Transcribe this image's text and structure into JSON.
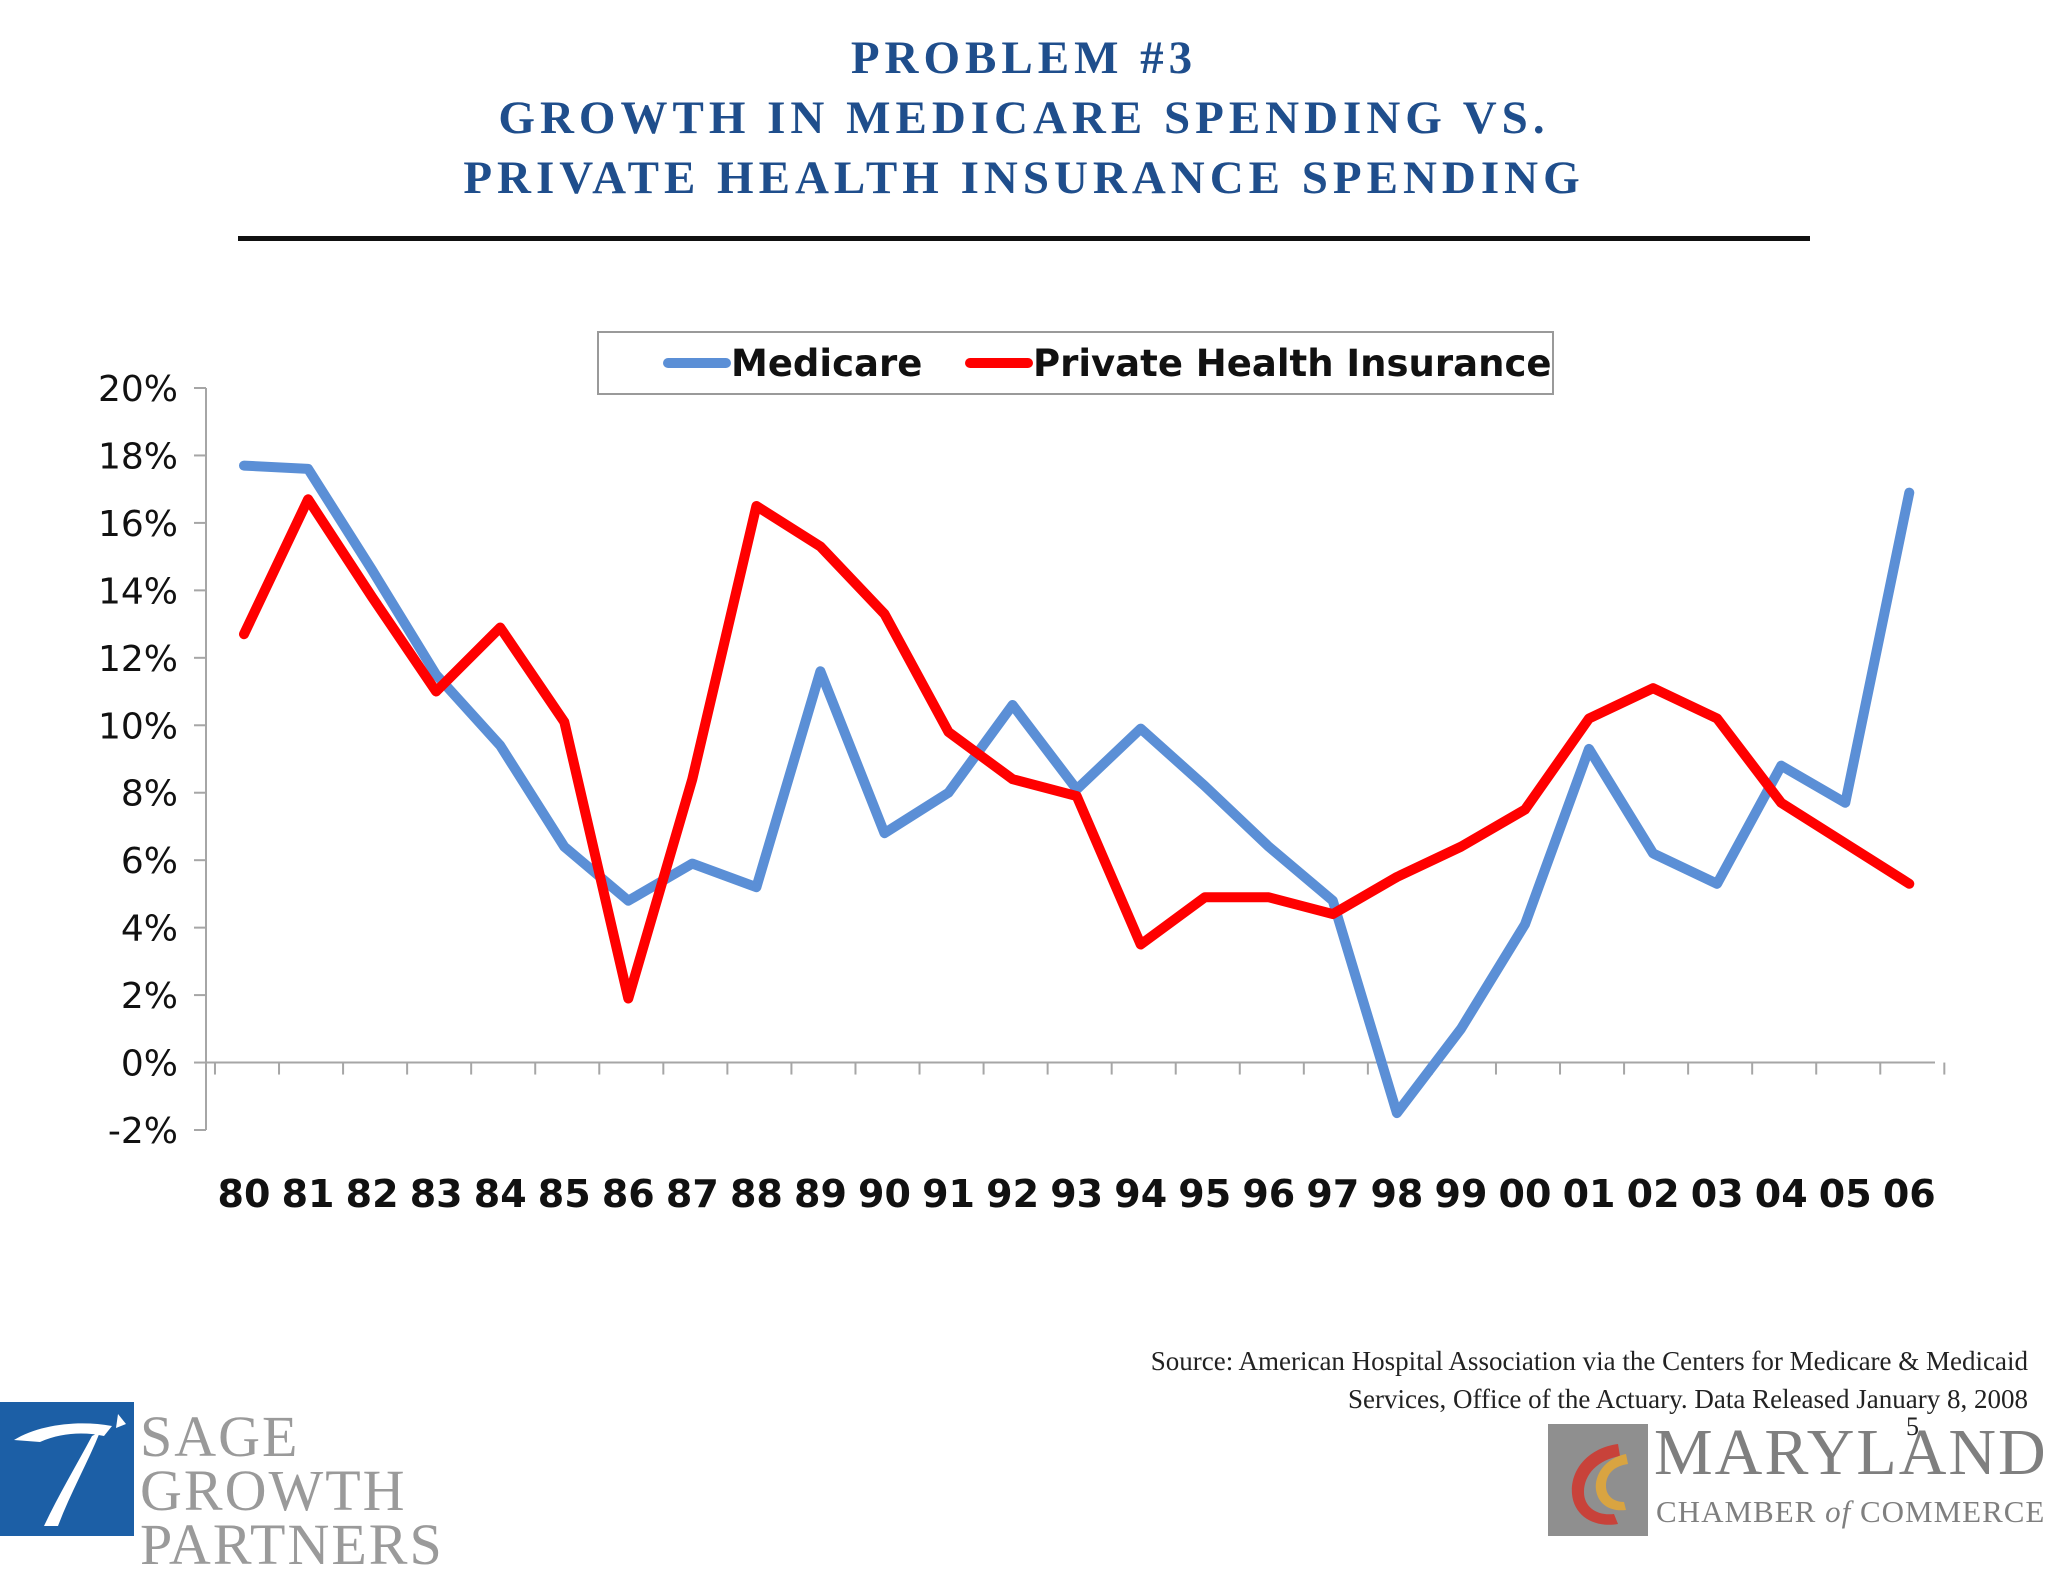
{
  "slide": {
    "title_lines": [
      "PROBLEM #3",
      "GROWTH IN MEDICARE SPENDING VS.",
      "PRIVATE HEALTH INSURANCE SPENDING"
    ],
    "source_lines": [
      "Source: American Hospital Association via the Centers for Medicare & Medicaid",
      "Services, Office of the Actuary. Data Released January 8, 2008"
    ],
    "page_number": "5"
  },
  "logos": {
    "left": {
      "line1": "SAGE GROWTH",
      "line2": "PARTNERS",
      "color": "#1c5fa6"
    },
    "right": {
      "name": "MARYLAND",
      "sub_before": "CHAMBER ",
      "sub_italic": "of",
      "sub_after": " COMMERCE",
      "color": "#7f7f7f"
    }
  },
  "chart_data": {
    "type": "line",
    "title": "",
    "xlabel": "",
    "ylabel": "",
    "categories": [
      "80",
      "81",
      "82",
      "83",
      "84",
      "85",
      "86",
      "87",
      "88",
      "89",
      "90",
      "91",
      "92",
      "93",
      "94",
      "95",
      "96",
      "97",
      "98",
      "99",
      "00",
      "01",
      "02",
      "03",
      "04",
      "05",
      "06"
    ],
    "ylim": [
      -0.02,
      0.2
    ],
    "y_ticks": [
      -0.02,
      0,
      0.02,
      0.04,
      0.06,
      0.08,
      0.1,
      0.12,
      0.14,
      0.16,
      0.18,
      0.2
    ],
    "y_tick_labels": [
      "-2%",
      "0%",
      "2%",
      "4%",
      "6%",
      "8%",
      "10%",
      "12%",
      "14%",
      "16%",
      "18%",
      "20%"
    ],
    "grid": false,
    "legend_position": "top",
    "series": [
      {
        "name": "Medicare",
        "color": "#5b8fd6",
        "values": [
          0.177,
          0.176,
          0.146,
          0.115,
          0.094,
          0.064,
          0.048,
          0.059,
          0.052,
          0.116,
          0.068,
          0.08,
          0.106,
          0.081,
          0.099,
          0.082,
          0.064,
          0.048,
          -0.015,
          0.01,
          0.041,
          0.093,
          0.062,
          0.053,
          0.088,
          0.077,
          0.169
        ]
      },
      {
        "name": "Private Health Insurance",
        "color": "#ff0000",
        "values": [
          0.127,
          0.167,
          0.138,
          0.11,
          0.129,
          0.101,
          0.019,
          0.084,
          0.165,
          0.153,
          0.133,
          0.098,
          0.084,
          0.079,
          0.035,
          0.049,
          0.049,
          0.044,
          0.055,
          0.064,
          0.075,
          0.102,
          0.111,
          0.102,
          0.077,
          0.065,
          0.053
        ]
      }
    ]
  }
}
